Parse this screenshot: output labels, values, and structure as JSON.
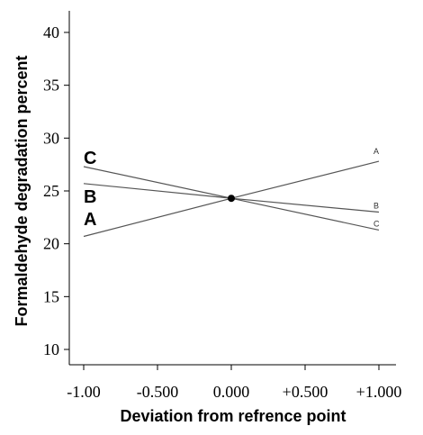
{
  "chart_data": {
    "type": "line",
    "title": "",
    "xlabel": "Deviation from refrence point",
    "ylabel": "Formaldehyde degradation percent",
    "x_tick_labels": [
      "-1.00",
      "-0.500",
      "0.000",
      "+0.500",
      "+1.000"
    ],
    "y_tick_labels": [
      "10",
      "15",
      "20",
      "25",
      "30",
      "35",
      "40"
    ],
    "xlim": [
      -1,
      1
    ],
    "ylim": [
      8.5,
      41.5
    ],
    "y_ticks": [
      10,
      15,
      20,
      25,
      30,
      35,
      40
    ],
    "x_ticks": [
      -1,
      -0.5,
      0,
      0.5,
      1
    ],
    "grid": false,
    "reference_point": {
      "x": 0,
      "y": 24.3
    },
    "series": [
      {
        "name": "A",
        "x": [
          -1,
          0,
          1
        ],
        "values": [
          20.7,
          24.3,
          27.8
        ]
      },
      {
        "name": "B",
        "x": [
          -1,
          0,
          1
        ],
        "values": [
          25.7,
          24.3,
          23.0
        ]
      },
      {
        "name": "C",
        "x": [
          -1,
          0,
          1
        ],
        "values": [
          27.3,
          24.3,
          21.3
        ]
      }
    ],
    "colors": {
      "line": "#555555",
      "point": "#000000"
    }
  }
}
